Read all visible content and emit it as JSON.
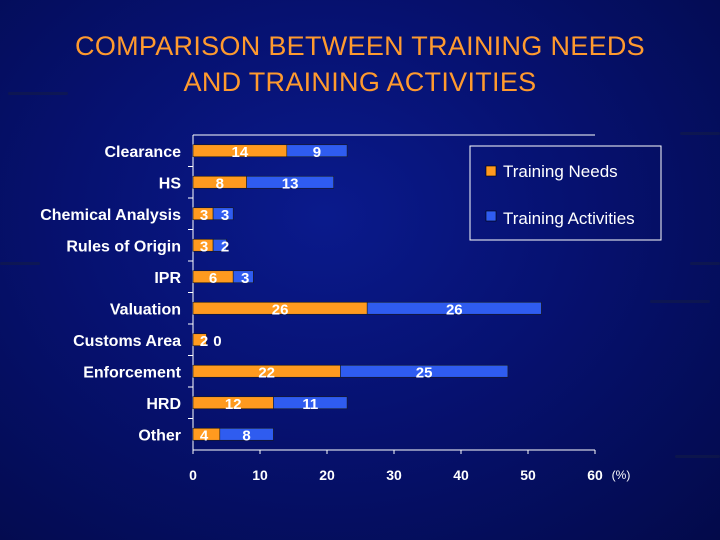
{
  "slide": {
    "title_line1": "COMPARISON BETWEEN TRAINING NEEDS",
    "title_line2": "AND TRAINING ACTIVITIES"
  },
  "colors": {
    "needs": "#ff9a1f",
    "activities": "#2f5cf0",
    "title": "#ff9a2e",
    "text": "#ffffff"
  },
  "chart_data": {
    "type": "bar",
    "orientation": "horizontal",
    "stacked": true,
    "categories": [
      "Clearance",
      "HS",
      "Chemical Analysis",
      "Rules of Origin",
      "IPR",
      "Valuation",
      "Customs Area",
      "Enforcement",
      "HRD",
      "Other"
    ],
    "series": [
      {
        "name": "Training Needs",
        "values": [
          14,
          8,
          3,
          3,
          6,
          26,
          2,
          22,
          12,
          4
        ]
      },
      {
        "name": "Training Activities",
        "values": [
          9,
          13,
          3,
          2,
          3,
          26,
          0,
          25,
          11,
          8
        ]
      }
    ],
    "xlim": [
      0,
      60
    ],
    "xticks": [
      0,
      10,
      20,
      30,
      40,
      50,
      60
    ],
    "xunit": "(%)",
    "legend": "top-right",
    "grid": false,
    "data_labels": true
  }
}
